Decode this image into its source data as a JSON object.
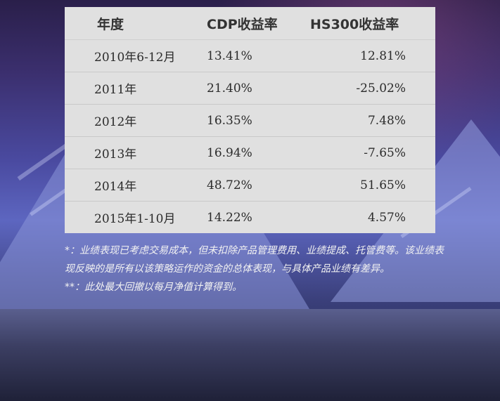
{
  "table": {
    "headers": {
      "year": "年度",
      "cdp": "CDP收益率",
      "hs300": "HS300收益率"
    },
    "rows": [
      {
        "year": "2010年6-12月",
        "cdp": "13.41%",
        "hs300": "12.81%"
      },
      {
        "year": "2011年",
        "cdp": "21.40%",
        "hs300": "-25.02%"
      },
      {
        "year": "2012年",
        "cdp": "16.35%",
        "hs300": "7.48%"
      },
      {
        "year": "2013年",
        "cdp": "16.94%",
        "hs300": "-7.65%"
      },
      {
        "year": "2014年",
        "cdp": "48.72%",
        "hs300": "51.65%"
      },
      {
        "year": "2015年1-10月",
        "cdp": "14.22%",
        "hs300": "4.57%"
      }
    ]
  },
  "notes": {
    "note1": "*：业绩表现已考虑交易成本，但未扣除产品管理费用、业绩提成、托管费等。该业绩表现反映的是所有以该策略运作的资金的总体表现，与具体产品业绩有差异。",
    "note2": "**：此处最大回撤以每月净值计算得到。"
  },
  "colors": {
    "table_bg": "#e0e0e0",
    "note_text": "#f2f2f2"
  }
}
